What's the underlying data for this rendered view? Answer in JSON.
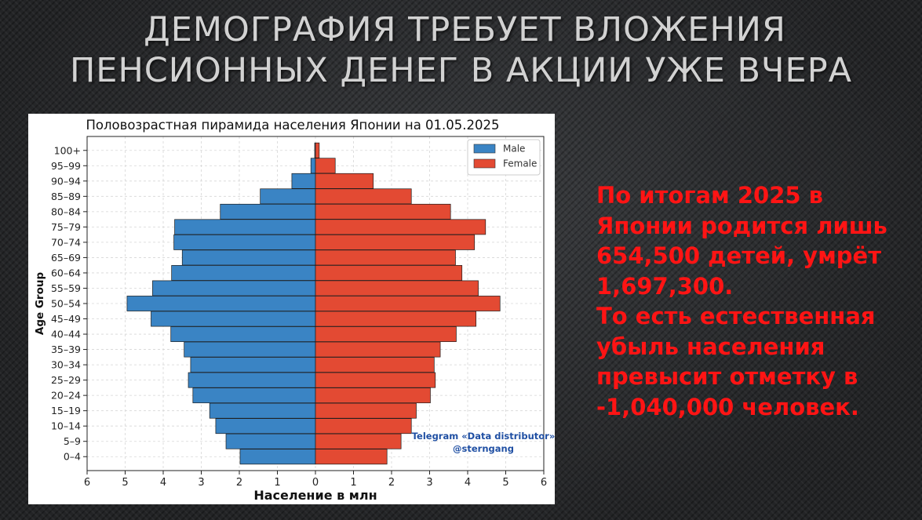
{
  "slide": {
    "title_lines": [
      "ДЕМОГРАФИЯ ТРЕБУЕТ ВЛОЖЕНИЯ",
      "ПЕНСИОННЫХ ДЕНЕГ В АКЦИИ УЖЕ ВЧЕРА"
    ],
    "note_lines": [
      "По итогам 2025 в",
      "Японии родится лишь",
      "654,500 детей, умрёт",
      "1,697,300.",
      "То есть естественная",
      "убыль населения",
      "превысит отметку в",
      "-1,040,000 человек."
    ]
  },
  "chart_data": {
    "type": "bar",
    "orientation": "horizontal",
    "layout": "population-pyramid",
    "title": "Половозрастная пирамида населения Японии на 01.05.2025",
    "xlabel": "Население в млн",
    "ylabel": "Age Group",
    "xlim": [
      -6,
      6
    ],
    "x_tick_values": [
      -6,
      -5,
      -4,
      -3,
      -2,
      -1,
      0,
      1,
      2,
      3,
      4,
      5,
      6
    ],
    "x_tick_labels": [
      "6",
      "5",
      "4",
      "3",
      "2",
      "1",
      "0",
      "1",
      "2",
      "3",
      "4",
      "5",
      "6"
    ],
    "grid": true,
    "legend_position": "top-right",
    "categories": [
      "0–4",
      "5–9",
      "10–14",
      "15–19",
      "20–24",
      "25–29",
      "30–34",
      "35–39",
      "40–44",
      "45–49",
      "50–54",
      "55–59",
      "60–64",
      "65–69",
      "70–74",
      "75–79",
      "80–84",
      "85–89",
      "90–94",
      "95–99",
      "100+"
    ],
    "series": [
      {
        "name": "Male",
        "color": "#3a84c4",
        "values": [
          1.98,
          2.35,
          2.62,
          2.78,
          3.22,
          3.34,
          3.28,
          3.45,
          3.8,
          4.32,
          4.95,
          4.28,
          3.78,
          3.5,
          3.72,
          3.7,
          2.5,
          1.45,
          0.62,
          0.12,
          0.02
        ]
      },
      {
        "name": "Female",
        "color": "#e34a33",
        "values": [
          1.88,
          2.25,
          2.52,
          2.65,
          3.02,
          3.15,
          3.12,
          3.28,
          3.7,
          4.22,
          4.85,
          4.28,
          3.85,
          3.68,
          4.18,
          4.47,
          3.55,
          2.52,
          1.52,
          0.52,
          0.1
        ]
      }
    ],
    "annotation": [
      "Telegram «Data distributor»",
      "@sterngang"
    ]
  }
}
